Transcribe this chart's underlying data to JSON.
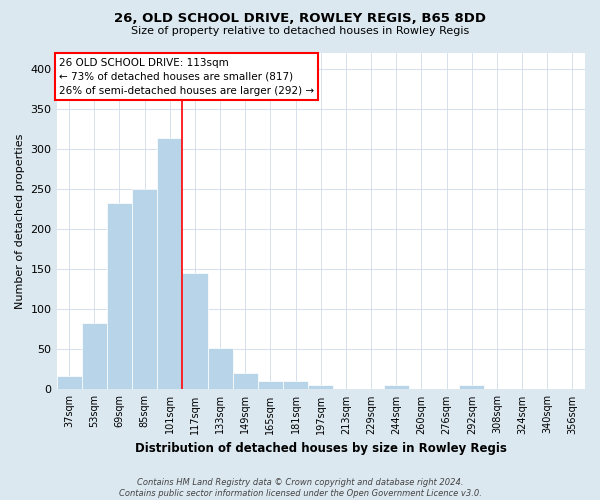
{
  "title": "26, OLD SCHOOL DRIVE, ROWLEY REGIS, B65 8DD",
  "subtitle": "Size of property relative to detached houses in Rowley Regis",
  "xlabel": "Distribution of detached houses by size in Rowley Regis",
  "ylabel": "Number of detached properties",
  "footer_line1": "Contains HM Land Registry data © Crown copyright and database right 2024.",
  "footer_line2": "Contains public sector information licensed under the Open Government Licence v3.0.",
  "bin_labels": [
    "37sqm",
    "53sqm",
    "69sqm",
    "85sqm",
    "101sqm",
    "117sqm",
    "133sqm",
    "149sqm",
    "165sqm",
    "181sqm",
    "197sqm",
    "213sqm",
    "229sqm",
    "244sqm",
    "260sqm",
    "276sqm",
    "292sqm",
    "308sqm",
    "324sqm",
    "340sqm",
    "356sqm"
  ],
  "bar_values": [
    17,
    83,
    232,
    250,
    313,
    145,
    52,
    21,
    10,
    10,
    5,
    0,
    0,
    5,
    0,
    0,
    5,
    0,
    0,
    0,
    0
  ],
  "bar_color": "#b8d4e8",
  "bar_edgecolor": "#b8d4e8",
  "vline_x": 5.0,
  "vline_color": "red",
  "annotation_title": "26 OLD SCHOOL DRIVE: 113sqm",
  "annotation_line1": "← 73% of detached houses are smaller (817)",
  "annotation_line2": "26% of semi-detached houses are larger (292) →",
  "annotation_box_edgecolor": "red",
  "annotation_box_facecolor": "white",
  "ylim": [
    0,
    420
  ],
  "yticks": [
    0,
    50,
    100,
    150,
    200,
    250,
    300,
    350,
    400
  ],
  "background_color": "#dce8f0",
  "plot_background_color": "#ffffff"
}
